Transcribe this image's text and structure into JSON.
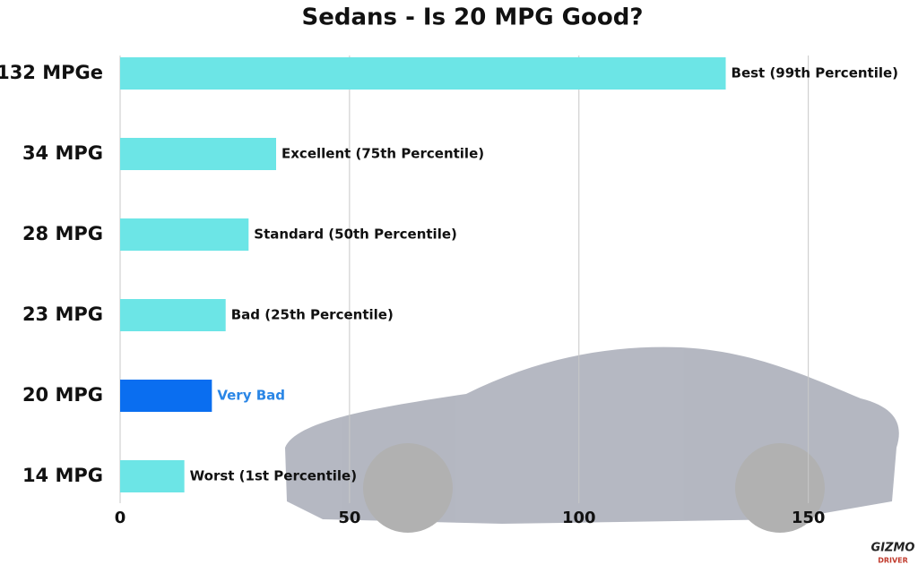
{
  "chart_data": {
    "type": "hbar",
    "title": "Sedans - Is 20 MPG Good?",
    "categories": [
      "132 MPGe",
      "34 MPG",
      "28 MPG",
      "23 MPG",
      "20 MPG",
      "14 MPG"
    ],
    "values": [
      132,
      34,
      28,
      23,
      20,
      14
    ],
    "annotations": [
      "Best (99th Percentile)",
      "Excellent (75th Percentile)",
      "Standard (50th Percentile)",
      "Bad (25th Percentile)",
      "Very Bad",
      "Worst (1st Percentile)"
    ],
    "colors": [
      "#6ce5e6",
      "#6ce5e6",
      "#6ce5e6",
      "#6ce5e6",
      "#0a6ef0",
      "#6ce5e6"
    ],
    "annotation_colors": [
      "#111111",
      "#111111",
      "#111111",
      "#111111",
      "#2a86e6",
      "#111111"
    ],
    "xlim": [
      0,
      170
    ],
    "xticks": [
      0,
      50,
      100,
      150
    ],
    "grid": true
  },
  "logo": [
    "GIZMO",
    "DRIVER"
  ]
}
